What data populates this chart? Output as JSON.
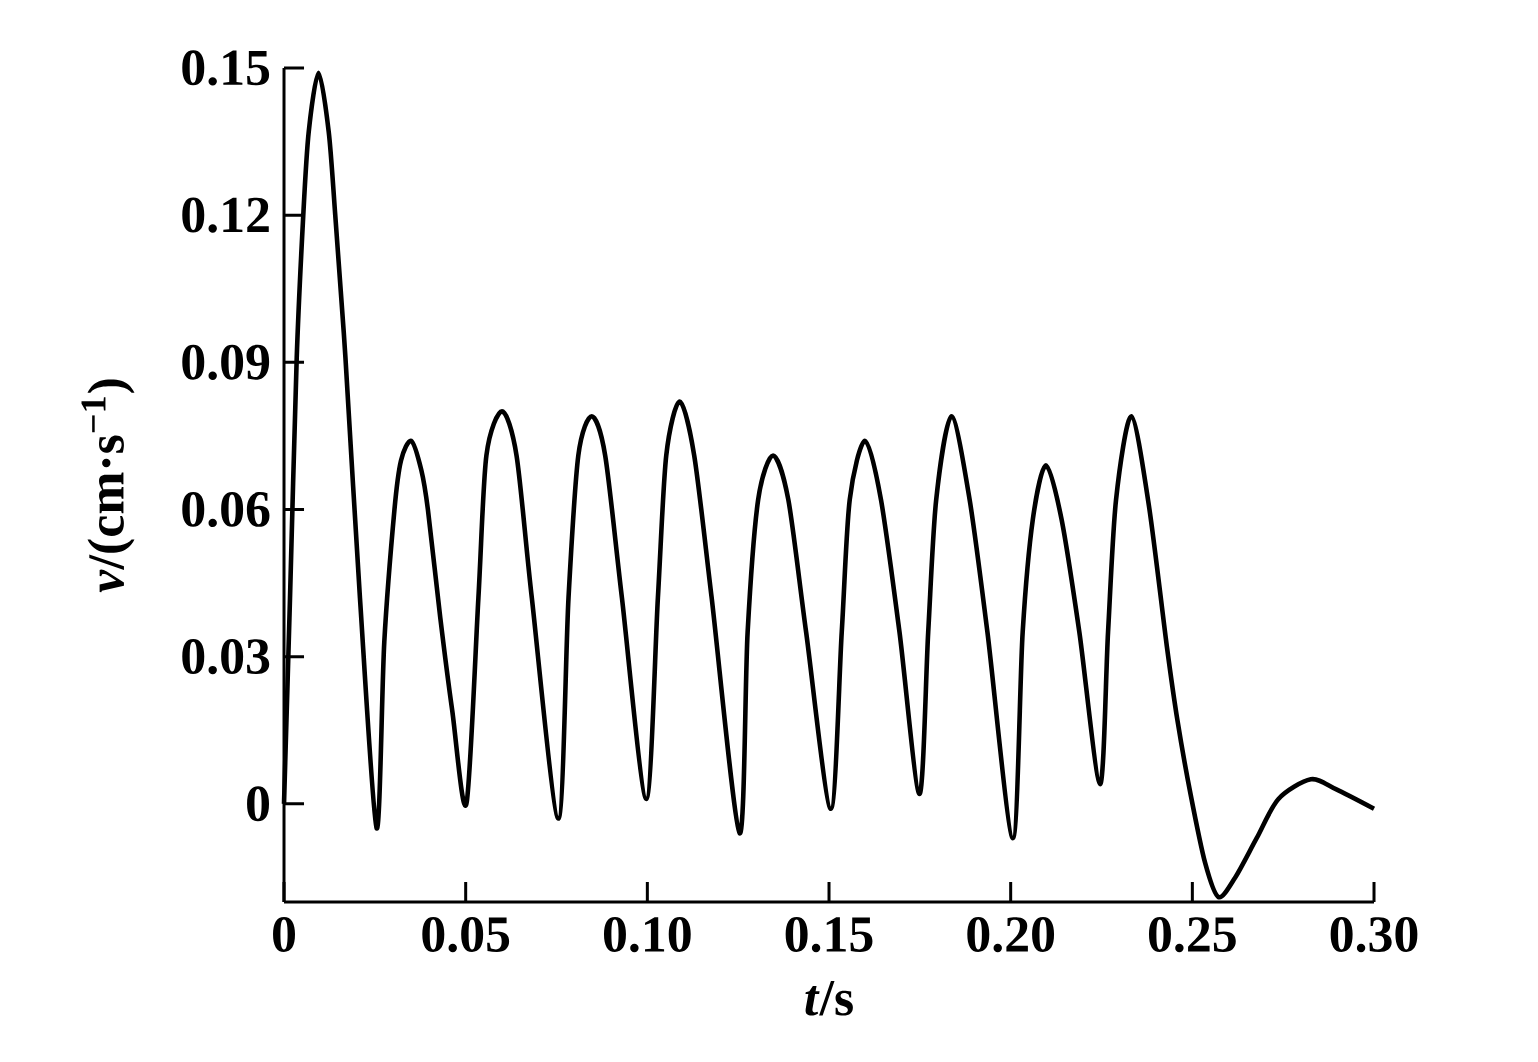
{
  "chart_data": {
    "type": "line",
    "xlabel": "*t*/s",
    "ylabel": "*v*/(cm·s$^{−1}$)",
    "x": [
      0,
      0.00165,
      0.0035,
      0.0053,
      0.0068,
      0.0095,
      0.0123,
      0.0141,
      0.0169,
      0.0209,
      0.0255,
      0.0276,
      0.0304,
      0.0322,
      0.035,
      0.0378,
      0.0396,
      0.043,
      0.0463,
      0.0502,
      0.0535,
      0.0557,
      0.06,
      0.064,
      0.0682,
      0.0755,
      0.0783,
      0.081,
      0.0847,
      0.0884,
      0.093,
      0.0997,
      0.1029,
      0.1052,
      0.1089,
      0.1129,
      0.1177,
      0.1254,
      0.1276,
      0.1305,
      0.1346,
      0.1388,
      0.1437,
      0.1505,
      0.1535,
      0.1557,
      0.1599,
      0.1643,
      0.1694,
      0.1749,
      0.1773,
      0.1795,
      0.1837,
      0.1887,
      0.1936,
      0.2006,
      0.2033,
      0.2061,
      0.2097,
      0.214,
      0.2189,
      0.2246,
      0.2268,
      0.229,
      0.2332,
      0.238,
      0.243,
      0.2459,
      0.2495,
      0.2535,
      0.2572,
      0.2618,
      0.2677,
      0.2737,
      0.2826,
      0.2895,
      0.3
    ],
    "series": [
      {
        "color": "#000000",
        "values": [
          0,
          0.042,
          0.091,
          0.12,
          0.137,
          0.149,
          0.137,
          0.12,
          0.091,
          0.042,
          -0.005,
          0.033,
          0.06,
          0.07,
          0.074,
          0.068,
          0.06,
          0.038,
          0.019,
          0,
          0.042,
          0.071,
          0.08,
          0.071,
          0.042,
          -0.003,
          0.042,
          0.071,
          0.079,
          0.071,
          0.042,
          0.001,
          0.042,
          0.071,
          0.082,
          0.071,
          0.042,
          -0.006,
          0.035,
          0.062,
          0.071,
          0.062,
          0.035,
          -0.001,
          0.035,
          0.062,
          0.074,
          0.062,
          0.035,
          0.002,
          0.035,
          0.062,
          0.079,
          0.062,
          0.035,
          -0.007,
          0.035,
          0.058,
          0.069,
          0.058,
          0.035,
          0.004,
          0.035,
          0.062,
          0.079,
          0.061,
          0.032,
          0.017,
          0.002,
          -0.012,
          -0.019,
          -0.015,
          -0.007,
          0.001,
          0.005,
          0.003,
          -0.001
        ]
      }
    ],
    "xlim": [
      0,
      0.3
    ],
    "ylim": [
      -0.02,
      0.15
    ],
    "xticks": [
      0,
      0.05,
      {
        "value": 0.1,
        "label": "0.10"
      },
      0.15,
      {
        "value": 0.2,
        "label": "0.20"
      },
      0.25,
      {
        "value": 0.3,
        "label": "0.30"
      }
    ],
    "yticks": [
      0,
      0.03,
      0.06,
      0.09,
      0.12,
      0.15
    ],
    "marker": "none",
    "line_style": "solid"
  }
}
